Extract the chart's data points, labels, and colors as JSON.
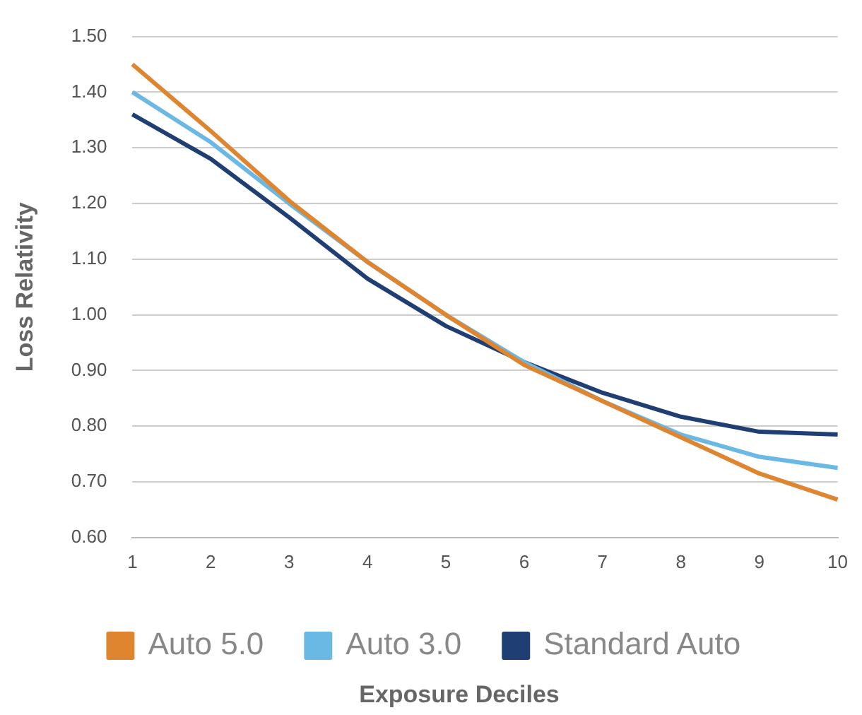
{
  "chart_data": {
    "type": "line",
    "xlabel": "Exposure Deciles",
    "ylabel": "Loss Relativity",
    "categories": [
      "1",
      "2",
      "3",
      "4",
      "5",
      "6",
      "7",
      "8",
      "9",
      "10"
    ],
    "series": [
      {
        "name": "Auto 5.0",
        "color": "#e0852f",
        "values": [
          1.45,
          1.33,
          1.205,
          1.095,
          1.0,
          0.91,
          0.845,
          0.78,
          0.715,
          0.668
        ]
      },
      {
        "name": "Auto 3.0",
        "color": "#6ab8e4",
        "values": [
          1.4,
          1.31,
          1.2,
          1.095,
          1.0,
          0.915,
          0.845,
          0.785,
          0.745,
          0.725
        ]
      },
      {
        "name": "Standard Auto",
        "color": "#1f3e73",
        "values": [
          1.36,
          1.28,
          1.175,
          1.065,
          0.98,
          0.915,
          0.86,
          0.817,
          0.79,
          0.785
        ]
      }
    ],
    "ylim": [
      0.6,
      1.5
    ],
    "yticks": [
      {
        "value": 0.6,
        "label": "0.60"
      },
      {
        "value": 0.7,
        "label": "0.70"
      },
      {
        "value": 0.8,
        "label": "0.80"
      },
      {
        "value": 0.9,
        "label": "0.90"
      },
      {
        "value": 1.0,
        "label": "1.00"
      },
      {
        "value": 1.1,
        "label": "1.10"
      },
      {
        "value": 1.2,
        "label": "1.20"
      },
      {
        "value": 1.3,
        "label": "1.30"
      },
      {
        "value": 1.4,
        "label": "1.40"
      },
      {
        "value": 1.5,
        "label": "1.50"
      }
    ],
    "grid": "y",
    "legend": "bottom",
    "marker": "none",
    "line_style": "solid"
  }
}
